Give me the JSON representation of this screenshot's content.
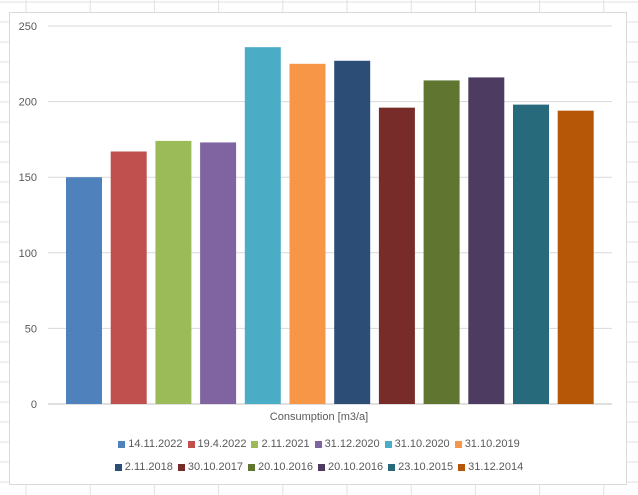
{
  "chart_data": {
    "type": "bar",
    "title": "",
    "xlabel": "Consumption [m3/a]",
    "ylabel": "",
    "ylim": [
      0,
      250
    ],
    "yticks": [
      0,
      50,
      100,
      150,
      200,
      250
    ],
    "grid": true,
    "legend": "bottom",
    "categories": [
      "Consumption [m3/a]"
    ],
    "series": [
      {
        "name": "14.11.2022",
        "values": [
          150
        ],
        "color": "#4F81BD"
      },
      {
        "name": "19.4.2022",
        "values": [
          167
        ],
        "color": "#C0504D"
      },
      {
        "name": "2.11.2021",
        "values": [
          174
        ],
        "color": "#9BBB59"
      },
      {
        "name": "31.12.2020",
        "values": [
          173
        ],
        "color": "#8064A2"
      },
      {
        "name": "31.10.2020",
        "values": [
          236
        ],
        "color": "#4BACC6"
      },
      {
        "name": "31.10.2019",
        "values": [
          225
        ],
        "color": "#F79646"
      },
      {
        "name": "2.11.2018",
        "values": [
          227
        ],
        "color": "#2C4D75"
      },
      {
        "name": "30.10.2017",
        "values": [
          196
        ],
        "color": "#772C2A"
      },
      {
        "name": "20.10.2016",
        "values": [
          214
        ],
        "color": "#5F7530"
      },
      {
        "name": "20.10.2016",
        "values": [
          216
        ],
        "color": "#4D3B62"
      },
      {
        "name": "23.10.2015",
        "values": [
          198
        ],
        "color": "#276A7C"
      },
      {
        "name": "31.12.2014",
        "values": [
          194
        ],
        "color": "#B65708"
      }
    ]
  }
}
